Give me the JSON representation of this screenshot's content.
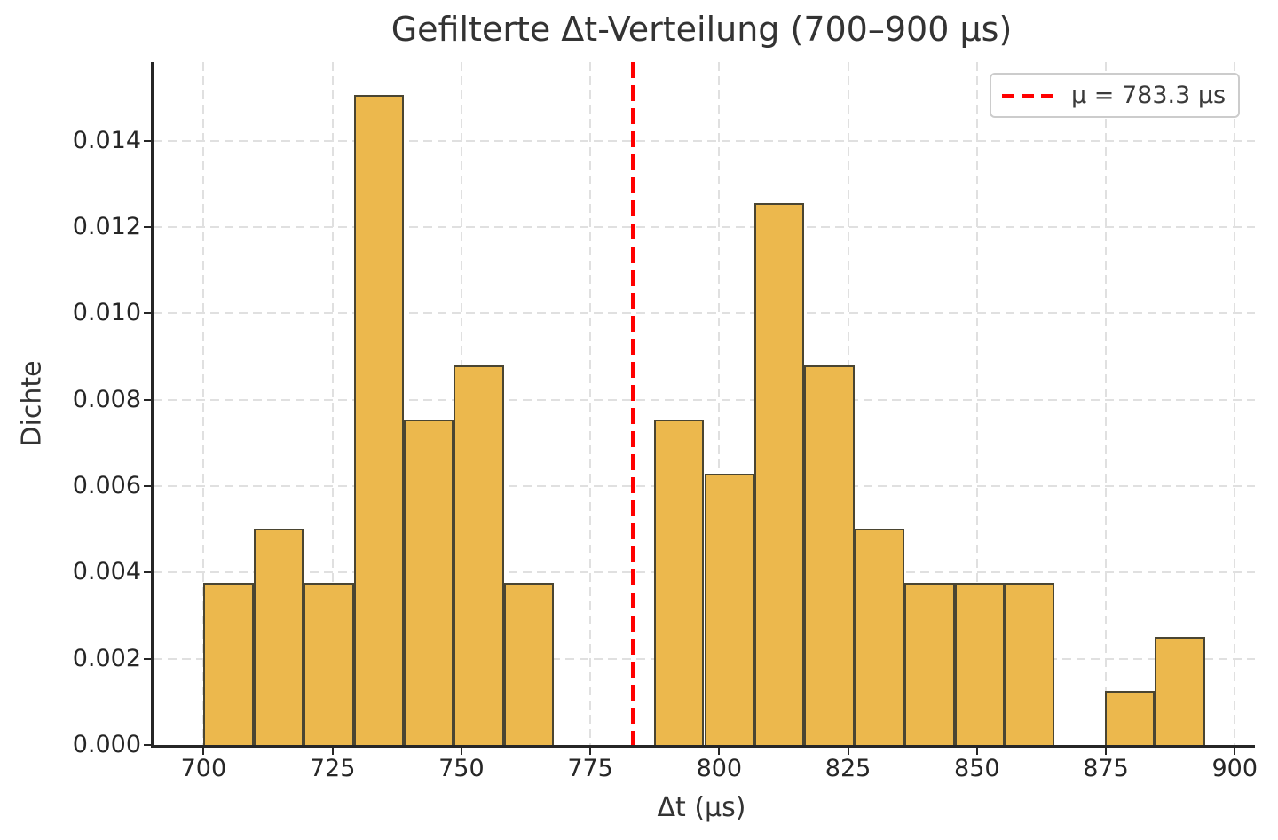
{
  "figure": {
    "title": "Gefilterte Δt-Verteilung (700–900 μs)",
    "xlabel": "Δt (μs)",
    "ylabel": "Dichte",
    "legend_label": "μ = 783.3 μs"
  },
  "colors": {
    "bar_fill": "#ECB84D",
    "bar_edge": "#4A4532",
    "mean_line": "#FF0000",
    "grid": "#E0E0E0",
    "spine": "#262626",
    "tick_label": "#262626",
    "text": "#333333",
    "legend_border": "#CCCCCC",
    "background": "#FFFFFF"
  },
  "chart_data": {
    "type": "bar",
    "subtype": "histogram",
    "title": "Gefilterte Δt-Verteilung (700–900 μs)",
    "xlabel": "Δt (μs)",
    "ylabel": "Dichte",
    "grid": true,
    "legend_position": "upper right",
    "legend_entries": [
      "μ = 783.3 μs"
    ],
    "mean": 783.3,
    "mean_line_style": "red dashed vertical",
    "xlim": [
      690.29,
      903.91
    ],
    "ylim": [
      0,
      0.015822
    ],
    "xticks": [
      700,
      725,
      750,
      775,
      800,
      825,
      850,
      875,
      900
    ],
    "xtick_labels": [
      "700",
      "725",
      "750",
      "775",
      "800",
      "825",
      "850",
      "875",
      "900"
    ],
    "yticks": [
      0,
      0.002,
      0.004,
      0.006,
      0.008,
      0.01,
      0.012,
      0.014
    ],
    "ytick_labels": [
      "0.000",
      "0.002",
      "0.004",
      "0.006",
      "0.008",
      "0.010",
      "0.012",
      "0.014"
    ],
    "bin_edges": [
      700.0,
      709.71,
      719.42,
      729.13,
      738.84,
      748.55,
      758.26,
      767.97,
      777.68,
      787.39,
      797.1,
      806.81,
      816.52,
      826.23,
      835.94,
      845.65,
      855.36,
      865.07,
      874.78,
      884.49,
      894.2
    ],
    "densities": [
      0.003767,
      0.005023,
      0.003767,
      0.01507,
      0.007535,
      0.008791,
      0.003767,
      0,
      0,
      0.007535,
      0.006279,
      0.012558,
      0.008791,
      0.005023,
      0.003767,
      0.003767,
      0.003767,
      0,
      0.001256,
      0.002512
    ]
  }
}
